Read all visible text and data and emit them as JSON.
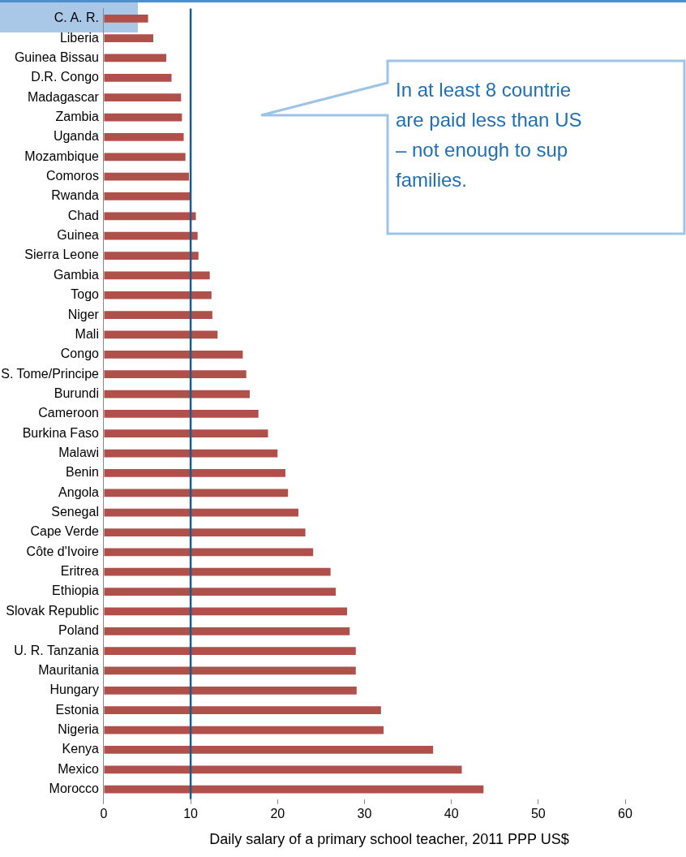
{
  "chart_data": {
    "type": "bar",
    "orientation": "horizontal",
    "xlabel": "Daily salary of a primary school teacher, 2011 PPP US$",
    "categories": [
      "C. A. R.",
      "Liberia",
      "Guinea Bissau",
      "D.R. Congo",
      "Madagascar",
      "Zambia",
      "Uganda",
      "Mozambique",
      "Comoros",
      "Rwanda",
      "Chad",
      "Guinea",
      "Sierra Leone",
      "Gambia",
      "Togo",
      "Niger",
      "Mali",
      "Congo",
      "S. Tome/Principe",
      "Burundi",
      "Cameroon",
      "Burkina Faso",
      "Malawi",
      "Benin",
      "Angola",
      "Senegal",
      "Cape Verde",
      "Côte d'Ivoire",
      "Eritrea",
      "Ethiopia",
      "Slovak Republic",
      "Poland",
      "U. R. Tanzania",
      "Mauritania",
      "Hungary",
      "Estonia",
      "Nigeria",
      "Kenya",
      "Mexico",
      "Morocco"
    ],
    "values": [
      5.1,
      5.7,
      7.2,
      7.8,
      8.9,
      9.0,
      9.2,
      9.4,
      9.8,
      9.9,
      10.6,
      10.8,
      10.9,
      12.2,
      12.4,
      12.5,
      13.1,
      16.0,
      16.4,
      16.8,
      17.8,
      18.9,
      20.0,
      20.9,
      21.2,
      22.4,
      23.2,
      24.1,
      26.1,
      26.7,
      28.0,
      28.3,
      29.0,
      29.0,
      29.1,
      31.9,
      32.2,
      37.9,
      41.2,
      43.7
    ],
    "color": "#b0504b",
    "xlim": [
      0,
      60
    ],
    "xticks": [
      0,
      10,
      20,
      30,
      40,
      50,
      60
    ],
    "grid": false,
    "legend": false,
    "ref_lines": [
      {
        "axis": "x",
        "value": 10,
        "color": "#1f5a8c"
      }
    ],
    "annotations": [
      "In at least 8 countrie\nare paid less than US\n– not enough to sup\nfamilies."
    ]
  }
}
